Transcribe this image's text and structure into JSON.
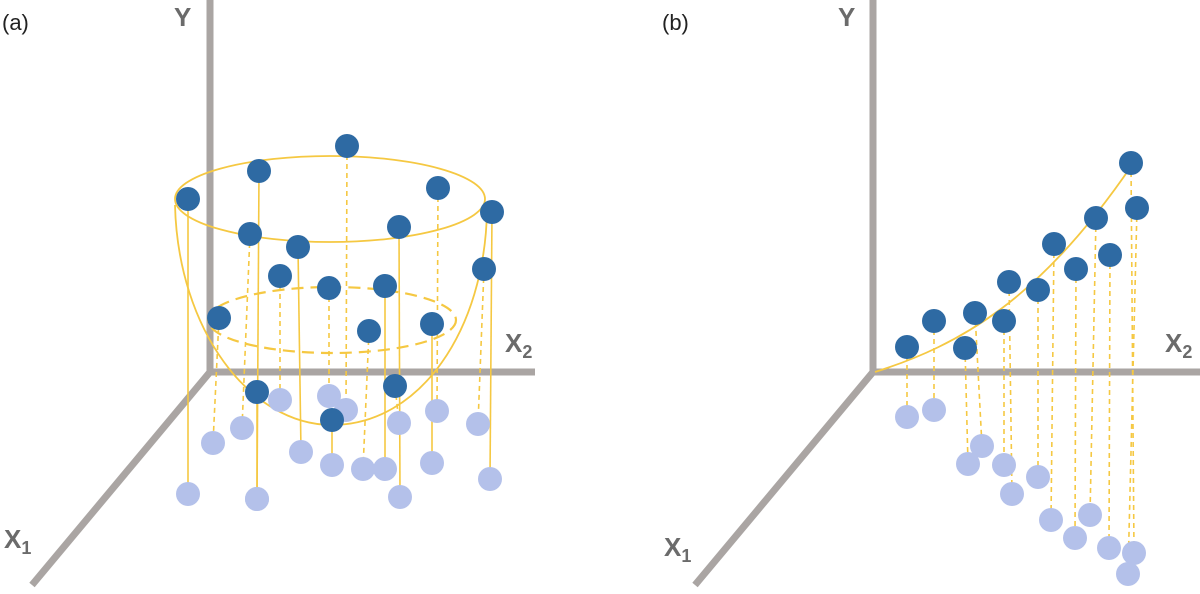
{
  "panels": [
    {
      "label": "(a)",
      "y_axis": "Y",
      "x2_axis": {
        "base": "X",
        "sub": "2"
      },
      "x1_axis": {
        "base": "X",
        "sub": "1"
      }
    },
    {
      "label": "(b)",
      "y_axis": "Y",
      "x2_axis": {
        "base": "X",
        "sub": "2"
      },
      "x1_axis": {
        "base": "X",
        "sub": "1"
      }
    }
  ]
}
